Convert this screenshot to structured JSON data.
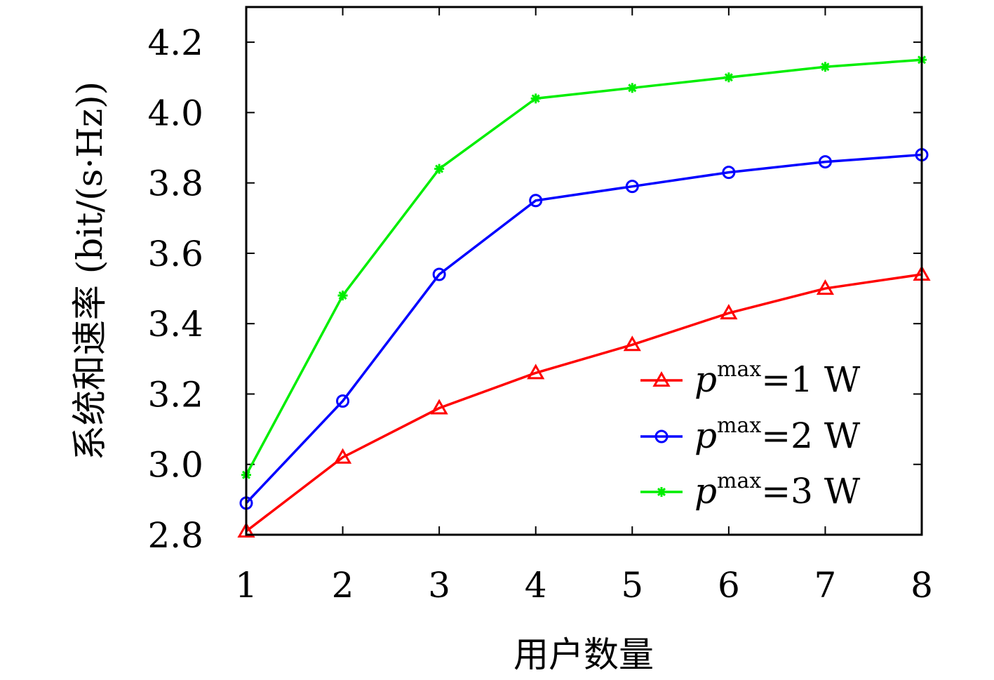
{
  "chart_data": {
    "type": "line",
    "xlabel": "用户数量",
    "ylabel": "系统和速率 (bit/(s·Hz))",
    "x": [
      1,
      2,
      3,
      4,
      5,
      6,
      7,
      8
    ],
    "xlim": [
      1,
      8
    ],
    "ylim": [
      2.8,
      4.3
    ],
    "xticks": [
      "1",
      "2",
      "3",
      "4",
      "5",
      "6",
      "7",
      "8"
    ],
    "yticks": [
      "2.8",
      "3.0",
      "3.2",
      "3.4",
      "3.6",
      "3.8",
      "4.0",
      "4.2"
    ],
    "grid": false,
    "legend_position": "bottom-right",
    "series": [
      {
        "name": "p^max=1 W",
        "legend": {
          "base": "p",
          "sup": "max",
          "rest": "=1 W"
        },
        "color": "#ff0000",
        "marker": "triangle",
        "values": [
          2.81,
          3.02,
          3.16,
          3.26,
          3.34,
          3.43,
          3.5,
          3.54
        ]
      },
      {
        "name": "p^max=2 W",
        "legend": {
          "base": "p",
          "sup": "max",
          "rest": "=2 W"
        },
        "color": "#0000ff",
        "marker": "circle",
        "values": [
          2.89,
          3.18,
          3.54,
          3.75,
          3.79,
          3.83,
          3.86,
          3.88
        ]
      },
      {
        "name": "p^max=3 W",
        "legend": {
          "base": "p",
          "sup": "max",
          "rest": "=3 W"
        },
        "color": "#00ee00",
        "marker": "asterisk",
        "values": [
          2.97,
          3.48,
          3.84,
          4.04,
          4.07,
          4.1,
          4.13,
          4.15
        ]
      }
    ]
  }
}
